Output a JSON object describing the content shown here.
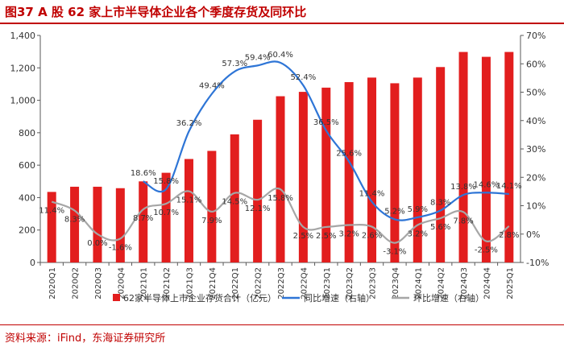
{
  "header": {
    "title": "图37  A 股 62 家上市半导体企业各个季度存货及同环比"
  },
  "footer": {
    "source": "资料来源：iFind，东海证券研究所"
  },
  "colors": {
    "bar": "#e21e1e",
    "yoy": "#2e75d6",
    "qoq": "#a6a6a6",
    "axis": "#595959",
    "title": "#c00000"
  },
  "chart_data": {
    "type": "bar",
    "title": "图37  A 股 62 家上市半导体企业各个季度存货及同环比",
    "categories": [
      "2020Q1",
      "2020Q2",
      "2020Q3",
      "2020Q4",
      "2021Q1",
      "2021Q2",
      "2021Q3",
      "2021Q4",
      "2022Q1",
      "2022Q2",
      "2022Q3",
      "2022Q4",
      "2023Q1",
      "2023Q2",
      "2023Q3",
      "2023Q4",
      "2024Q1",
      "2024Q2",
      "2024Q3",
      "2024Q4",
      "2025Q1"
    ],
    "ylim_left": [
      0,
      1400
    ],
    "yticks_left": [
      "0",
      "200",
      "400",
      "600",
      "800",
      "1,000",
      "1,200",
      "1,400"
    ],
    "ylim_right": [
      -10,
      70
    ],
    "yticks_right": [
      "-10%",
      "0%",
      "10%",
      "20%",
      "30%",
      "40%",
      "50%",
      "60%",
      "70%"
    ],
    "series": [
      {
        "name": "62家半导体上市企业存货合计（亿元）",
        "type": "bar",
        "axis": "left",
        "values": [
          435,
          467,
          467,
          458,
          500,
          553,
          638,
          688,
          790,
          880,
          1025,
          1052,
          1078,
          1112,
          1140,
          1105,
          1140,
          1205,
          1298,
          1268,
          1298
        ]
      },
      {
        "name": "同比增速（右轴）",
        "type": "line",
        "axis": "right",
        "values": [
          null,
          null,
          null,
          null,
          18.6,
          15.8,
          36.2,
          49.4,
          57.3,
          59.4,
          60.4,
          52.4,
          36.5,
          25.6,
          11.4,
          5.2,
          5.9,
          8.3,
          13.8,
          14.6,
          14.1
        ]
      },
      {
        "name": "环比增速（右轴）",
        "type": "line",
        "axis": "right",
        "values": [
          11.4,
          8.3,
          0.0,
          -1.6,
          8.7,
          10.7,
          15.1,
          7.9,
          14.5,
          12.1,
          15.8,
          2.5,
          2.5,
          3.2,
          2.6,
          -3.1,
          3.2,
          5.6,
          7.8,
          -2.5,
          2.8
        ]
      }
    ],
    "yoy_labels": [
      null,
      null,
      null,
      null,
      "18.6%",
      "15.8%",
      "36.2%",
      "49.4%",
      "57.3%",
      "59.4%",
      "60.4%",
      "52.4%",
      "36.5%",
      "25.6%",
      "11.4%",
      "5.2%",
      "5.9%",
      "8.3%",
      "13.8%",
      "14.6%",
      "14.1%"
    ],
    "qoq_labels": [
      "11.4%",
      "8.3%",
      "0.0%",
      "-1.6%",
      "8.7%",
      "10.7%",
      "15.1%",
      "7.9%",
      "14.5%",
      "12.1%",
      "15.8%",
      "2.5%",
      "2.5%",
      "3.2%",
      "2.6%",
      "-3.1%",
      "3.2%",
      "5.6%",
      "7.8%",
      "-2.5%",
      "2.8%"
    ],
    "legend": {
      "position": "bottom",
      "entries": [
        "62家半导体上市企业存货合计（亿元）",
        "同比增速（右轴）",
        "环比增速（右轴）"
      ]
    },
    "xlabel": "",
    "ylabel": ""
  }
}
